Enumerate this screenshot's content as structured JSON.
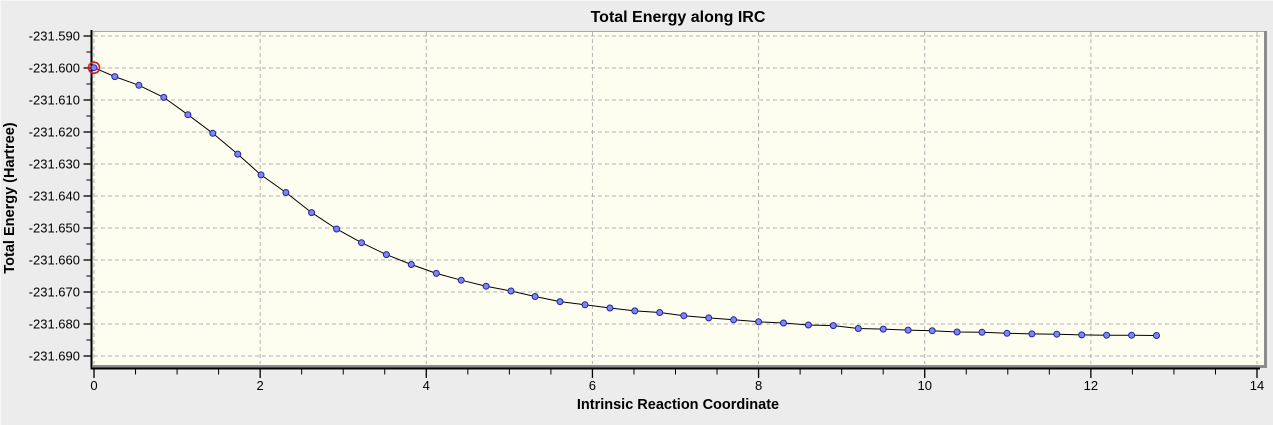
{
  "chart_data": {
    "type": "line",
    "title": "Total Energy along IRC",
    "xlabel": "Intrinsic Reaction Coordinate",
    "ylabel": "Total Energy (Hartree)",
    "xlim": [
      0,
      14
    ],
    "ylim": [
      -231.6925,
      -231.5885
    ],
    "x_ticks": [
      0,
      2,
      4,
      6,
      8,
      10,
      12,
      14
    ],
    "x_minor_step": 0.5,
    "y_ticks": [
      -231.59,
      -231.6,
      -231.61,
      -231.62,
      -231.63,
      -231.64,
      -231.65,
      -231.66,
      -231.67,
      -231.68,
      -231.69
    ],
    "y_tick_decimals": 3,
    "y_minor_divisions": 2,
    "grid": "dashed-at-major-ticks",
    "legend": "none",
    "series": [
      {
        "name": "Total Energy",
        "marker": "circle",
        "selected_index": 0,
        "x": [
          0,
          0.25,
          0.54,
          0.84,
          1.13,
          1.43,
          1.73,
          2.01,
          2.31,
          2.62,
          2.92,
          3.22,
          3.52,
          3.82,
          4.12,
          4.42,
          4.72,
          5.02,
          5.31,
          5.61,
          5.91,
          6.21,
          6.51,
          6.81,
          7.1,
          7.4,
          7.7,
          8.0,
          8.3,
          8.6,
          8.9,
          9.2,
          9.5,
          9.8,
          10.09,
          10.39,
          10.69,
          10.99,
          11.29,
          11.59,
          11.89,
          12.19,
          12.49,
          12.79
        ],
        "y": [
          -231.5999,
          -231.6027,
          -231.6054,
          -231.6092,
          -231.6146,
          -231.6204,
          -231.6269,
          -231.6334,
          -231.6389,
          -231.6452,
          -231.6503,
          -231.6546,
          -231.6583,
          -231.6614,
          -231.6642,
          -231.6663,
          -231.6682,
          -231.6697,
          -231.6714,
          -231.673,
          -231.674,
          -231.675,
          -231.6759,
          -231.6764,
          -231.6774,
          -231.6781,
          -231.6787,
          -231.6793,
          -231.6797,
          -231.6803,
          -231.6805,
          -231.6814,
          -231.6816,
          -231.6819,
          -231.6821,
          -231.6825,
          -231.6826,
          -231.6829,
          -231.6831,
          -231.6832,
          -231.6834,
          -231.6835,
          -231.6835,
          -231.6836
        ]
      }
    ],
    "colors": {
      "panel_bg": "#ececec",
      "plot_bg": "#fdfdf0",
      "grid": "#b3b3b3",
      "frame_light": "#a8a8a8",
      "frame_shadow": "#8c8c8c",
      "axis": "#000000",
      "line": "#000000",
      "marker_fill": "#7d88e8",
      "marker_border": "#2222aa",
      "selected_ring": "#d42020"
    }
  }
}
